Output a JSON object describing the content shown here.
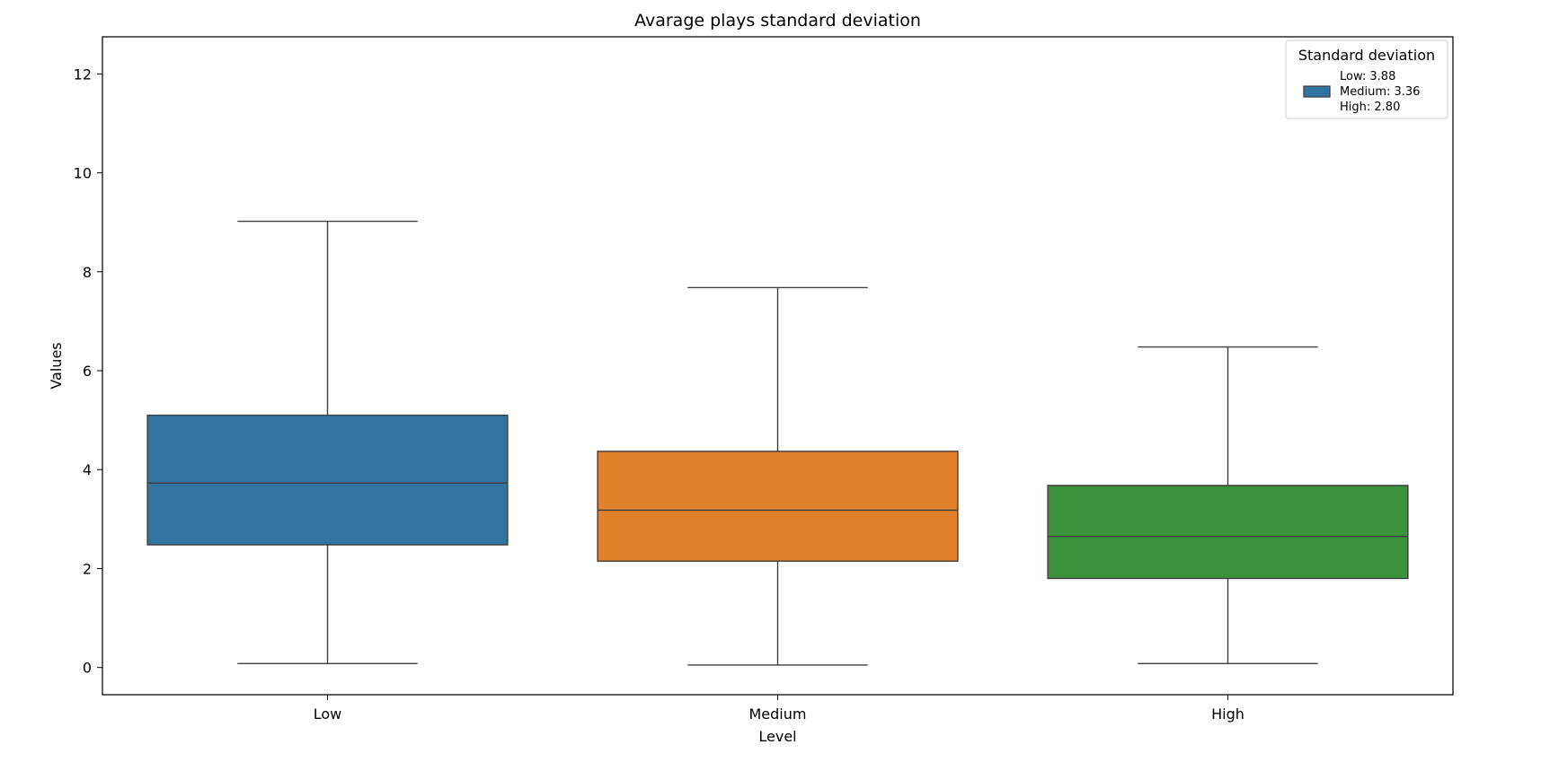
{
  "chart_data": {
    "type": "box",
    "title": "Avarage plays standard deviation",
    "xlabel": "Level",
    "ylabel": "Values",
    "ylim": [
      -0.55,
      12.75
    ],
    "yticks": [
      0,
      2,
      4,
      6,
      8,
      10,
      12
    ],
    "categories": [
      "Low",
      "Medium",
      "High"
    ],
    "boxes": [
      {
        "name": "Low",
        "whisker_low": 0.08,
        "q1": 2.48,
        "median": 3.73,
        "q3": 5.1,
        "whisker_high": 9.02,
        "color": "#3274a1"
      },
      {
        "name": "Medium",
        "whisker_low": 0.05,
        "q1": 2.15,
        "median": 3.18,
        "q3": 4.37,
        "whisker_high": 7.68,
        "color": "#e1812c"
      },
      {
        "name": "High",
        "whisker_low": 0.08,
        "q1": 1.8,
        "median": 2.65,
        "q3": 3.68,
        "whisker_high": 6.48,
        "color": "#3a923a"
      }
    ],
    "legend": {
      "title": "Standard deviation",
      "placement": "top-right",
      "swatch_color": "#3274a1",
      "entries": [
        "Low: 3.88",
        "Medium: 3.36",
        "High: 2.80"
      ]
    }
  },
  "colors": {
    "edge": "#3f3f3f",
    "axes": "#000000",
    "legend_border": "#cccccc"
  }
}
